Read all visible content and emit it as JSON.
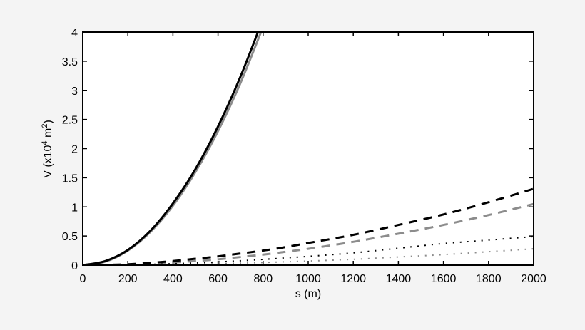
{
  "chart_data": {
    "type": "line",
    "title": "",
    "xlabel": "s (m)",
    "ylabel": "V (x10^4 m^2)",
    "ylabel_parts": {
      "pre": "V (x10",
      "sup1": "4",
      "mid": " m",
      "sup2": "2",
      "post": ")"
    },
    "xlim": [
      0,
      2000
    ],
    "ylim": [
      0,
      4
    ],
    "xticks": [
      0,
      200,
      400,
      600,
      800,
      1000,
      1200,
      1400,
      1600,
      1800,
      2000
    ],
    "yticks": [
      0,
      0.5,
      1,
      1.5,
      2,
      2.5,
      3,
      3.5,
      4
    ],
    "ytick_labels": [
      "0",
      "0.5",
      "1",
      "1.5",
      "2",
      "2.5",
      "3",
      "3.5",
      "4"
    ],
    "grid": false,
    "legend": null,
    "x": [
      0,
      100,
      200,
      300,
      400,
      500,
      600,
      700,
      800,
      900,
      1000,
      1200,
      1400,
      1600,
      1800,
      2000
    ],
    "series": [
      {
        "name": "solid-black",
        "color": "#000000",
        "style": "solid",
        "width": 3,
        "values": [
          0,
          0.07,
          0.26,
          0.59,
          1.06,
          1.65,
          2.38,
          3.24,
          4.23,
          null,
          null,
          null,
          null,
          null,
          null,
          null
        ]
      },
      {
        "name": "solid-gray",
        "color": "#8c8c8c",
        "style": "solid",
        "width": 3,
        "values": [
          0,
          0.06,
          0.25,
          0.57,
          1.02,
          1.6,
          2.3,
          3.13,
          4.09,
          null,
          null,
          null,
          null,
          null,
          null,
          null
        ]
      },
      {
        "name": "dashed-black",
        "color": "#000000",
        "style": "dashed",
        "width": 3,
        "values": [
          0,
          0.005,
          0.015,
          0.04,
          0.07,
          0.11,
          0.15,
          0.2,
          0.25,
          0.31,
          0.38,
          0.52,
          0.69,
          0.87,
          1.08,
          1.31
        ]
      },
      {
        "name": "dashed-gray",
        "color": "#8c8c8c",
        "style": "dashed",
        "width": 3,
        "values": [
          0,
          0.003,
          0.01,
          0.025,
          0.045,
          0.07,
          0.1,
          0.14,
          0.18,
          0.23,
          0.28,
          0.4,
          0.54,
          0.69,
          0.86,
          1.05
        ]
      },
      {
        "name": "dotted-black",
        "color": "#000000",
        "style": "dotted",
        "width": 2,
        "values": [
          0,
          0.002,
          0.006,
          0.013,
          0.024,
          0.038,
          0.055,
          0.075,
          0.098,
          0.124,
          0.15,
          0.21,
          0.29,
          0.37,
          0.43,
          0.49
        ]
      },
      {
        "name": "dotted-gray",
        "color": "#8c8c8c",
        "style": "dotted",
        "width": 2,
        "values": [
          0,
          0.001,
          0.003,
          0.007,
          0.012,
          0.018,
          0.026,
          0.035,
          0.045,
          0.057,
          0.07,
          0.1,
          0.14,
          0.18,
          0.23,
          0.28
        ]
      }
    ]
  }
}
